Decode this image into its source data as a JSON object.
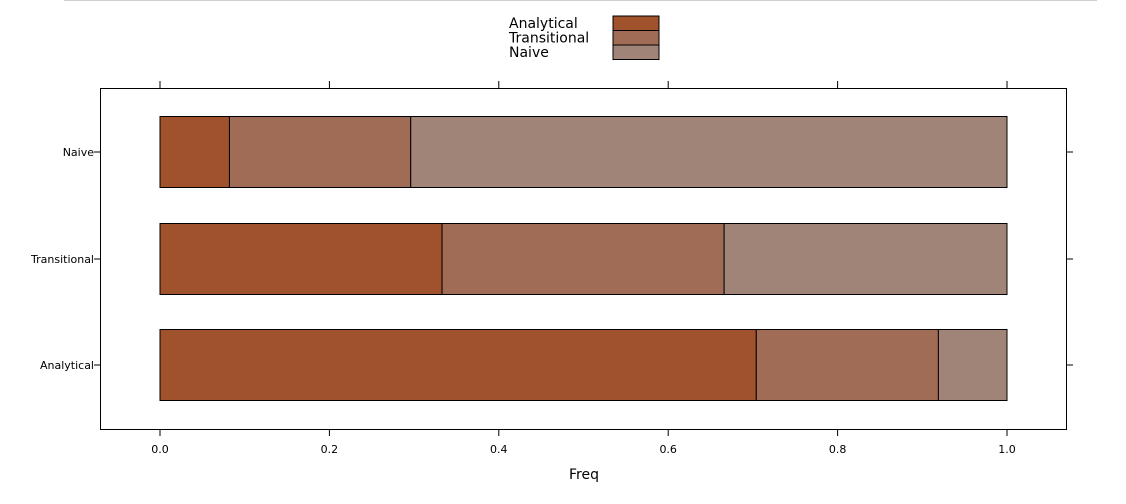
{
  "chart_data": {
    "type": "bar",
    "orientation": "horizontal",
    "stacked": true,
    "xlabel": "Freq",
    "ylabel": "",
    "xlim": [
      -0.07,
      1.07
    ],
    "x_ticks": [
      "0.0",
      "0.2",
      "0.4",
      "0.6",
      "0.8",
      "1.0"
    ],
    "x_tick_values": [
      0,
      0.2,
      0.4,
      0.6,
      0.8,
      1.0
    ],
    "tick_placement": "top and bottom",
    "grid": false,
    "legend_position": "top-center",
    "categories": [
      "Naive",
      "Transitional",
      "Analytical"
    ],
    "series": [
      {
        "name": "Analytical",
        "color": "#a0522d",
        "values": [
          0.082,
          0.333,
          0.704
        ]
      },
      {
        "name": "Transitional",
        "color": "#a06c56",
        "values": [
          0.214,
          0.333,
          0.215
        ]
      },
      {
        "name": "Naive",
        "color": "#a08478",
        "values": [
          0.704,
          0.334,
          0.081
        ]
      }
    ]
  }
}
